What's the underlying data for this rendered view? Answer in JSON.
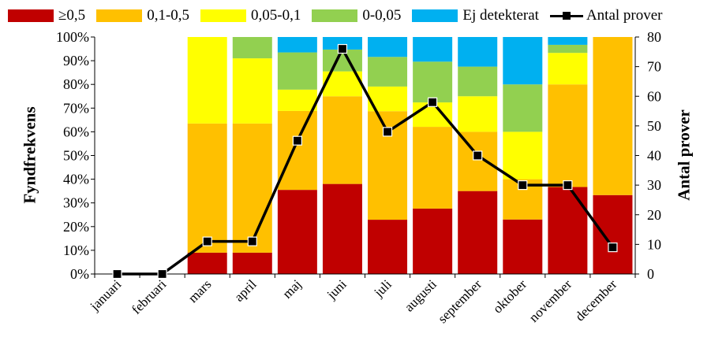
{
  "legend": [
    {
      "label": "≥0,5",
      "color": "#c00000"
    },
    {
      "label": "0,1-0,5",
      "color": "#ffc000"
    },
    {
      "label": "0,05-0,1",
      "color": "#ffff00"
    },
    {
      "label": "0-0,05",
      "color": "#92d050"
    },
    {
      "label": "Ej detekterat",
      "color": "#00b0f0"
    },
    {
      "label": "Antal prover",
      "color": "#000000",
      "marker": "square-icon"
    }
  ],
  "chart_data": {
    "type": "bar",
    "stacked": true,
    "categories": [
      "januari",
      "februari",
      "mars",
      "april",
      "maj",
      "juni",
      "juli",
      "augusti",
      "september",
      "oktober",
      "november",
      "december"
    ],
    "series": [
      {
        "name": "≥0,5",
        "color": "#c00000",
        "values": [
          0,
          0,
          9,
          9,
          35.5,
          38,
          22.9,
          27.6,
          35,
          23,
          36.7,
          33.3
        ]
      },
      {
        "name": "0,1-0,5",
        "color": "#ffc000",
        "values": [
          0,
          0,
          54.5,
          54.5,
          33.3,
          37,
          45.8,
          34.5,
          25,
          17,
          43.3,
          66.7
        ]
      },
      {
        "name": "0,05-0,1",
        "color": "#ffff00",
        "values": [
          0,
          0,
          36.5,
          27.5,
          9,
          10.5,
          10.4,
          10.3,
          15,
          20,
          13.3,
          0
        ]
      },
      {
        "name": "0-0,05",
        "color": "#92d050",
        "values": [
          0,
          0,
          0,
          9,
          15.7,
          9.2,
          12.5,
          17.2,
          12.5,
          20,
          3.4,
          0
        ]
      },
      {
        "name": "Ej detekterat",
        "color": "#00b0f0",
        "values": [
          0,
          0,
          0,
          0,
          6.5,
          5.3,
          8.4,
          10.4,
          12.5,
          20,
          3.3,
          0
        ]
      }
    ],
    "line_series": {
      "name": "Antal prover",
      "color": "#000000",
      "axis": "right",
      "values": [
        0,
        0,
        11,
        11,
        45,
        76,
        48,
        58,
        40,
        30,
        30,
        9
      ]
    },
    "ylabel": "Fyndfrekvens",
    "y2label": "Antal prover",
    "ylim": [
      0,
      100
    ],
    "y2lim": [
      0,
      80
    ],
    "yticks": [
      "0%",
      "10%",
      "20%",
      "30%",
      "40%",
      "50%",
      "60%",
      "70%",
      "80%",
      "90%",
      "100%"
    ],
    "y2ticks": [
      "0",
      "10",
      "20",
      "30",
      "40",
      "50",
      "60",
      "70",
      "80"
    ],
    "grid": false,
    "legend_position": "top"
  }
}
